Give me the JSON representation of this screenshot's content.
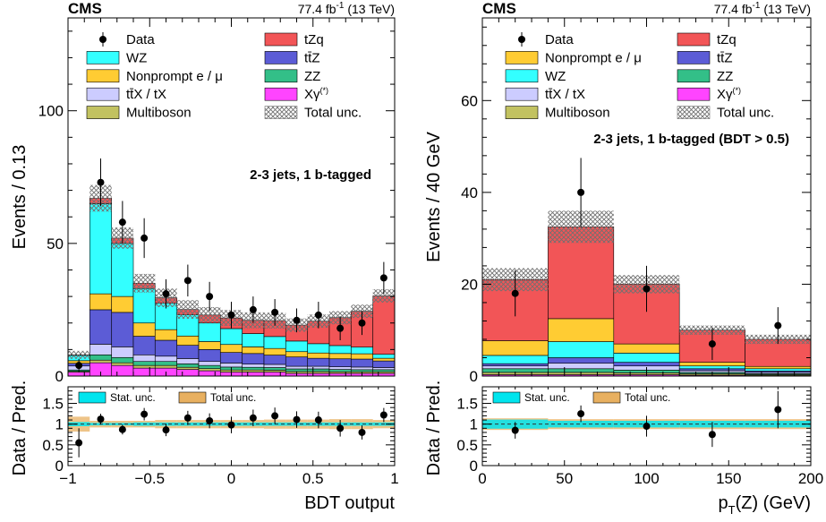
{
  "colors": {
    "tZq": "#f25557",
    "WZ": "#33ffff",
    "Nonprompt": "#ffcc33",
    "ttZ": "#5c5cd6",
    "ttX": "#ccccff",
    "ZZ": "#33bf88",
    "Multiboson": "#c2c260",
    "Xgamma": "#ff44ff",
    "stat": "#00e5ee",
    "total": "#e8b060"
  },
  "chart_data": [
    {
      "type": "bar",
      "stacked": true,
      "header": {
        "experiment": "CMS",
        "lumi": "77.4 fb",
        "lumi_sup": "-1",
        "lumi_energy": " (13 TeV)"
      },
      "region": "2-3 jets, 1 b-tagged",
      "xlabel": "BDT output",
      "ylabel": "Events / 0.13",
      "xlim": [
        -1,
        1
      ],
      "ylim": [
        0,
        135
      ],
      "yticks": [
        0,
        50,
        100
      ],
      "xtick_labels": [
        "−1",
        "−0.5",
        "0",
        "0.5",
        "1"
      ],
      "xtick_values": [
        -1,
        -0.5,
        0,
        0.5,
        1
      ],
      "ytick_labels": [
        "0",
        "50",
        "100"
      ],
      "bin_edges": [
        -1.0,
        -0.867,
        -0.733,
        -0.6,
        -0.467,
        -0.333,
        -0.2,
        -0.067,
        0.067,
        0.2,
        0.333,
        0.467,
        0.6,
        0.733,
        0.867,
        1.0
      ],
      "series": [
        {
          "key": "Xgamma",
          "values": [
            1.5,
            5,
            4,
            3,
            3,
            2.5,
            2,
            1.5,
            1.5,
            1.5,
            1,
            1,
            1,
            1,
            1
          ]
        },
        {
          "key": "Multiboson",
          "values": [
            0.3,
            1,
            1,
            1,
            1,
            0.8,
            0.8,
            0.8,
            0.8,
            0.7,
            0.7,
            0.7,
            0.6,
            0.6,
            0.6
          ]
        },
        {
          "key": "ZZ",
          "values": [
            0.5,
            2,
            2,
            1.5,
            1.5,
            1.3,
            1.2,
            1.1,
            1,
            1,
            1,
            1,
            0.9,
            0.8,
            0.8
          ]
        },
        {
          "key": "ttX",
          "values": [
            1.5,
            4,
            4,
            2.5,
            2,
            2,
            1.5,
            1.5,
            1.2,
            1.2,
            1,
            1,
            1,
            1,
            0.8
          ]
        },
        {
          "key": "ttZ",
          "values": [
            1,
            13,
            13,
            7,
            6,
            5,
            4.5,
            4,
            4,
            3.5,
            3.5,
            3,
            3,
            3,
            2.5
          ]
        },
        {
          "key": "Nonprompt",
          "values": [
            1,
            6,
            6,
            5,
            4,
            3.5,
            3,
            3,
            2.5,
            2.5,
            2,
            2,
            2,
            2,
            1
          ]
        },
        {
          "key": "WZ",
          "values": [
            2,
            34,
            20,
            13,
            10,
            8,
            7,
            6,
            5,
            4.5,
            4,
            3.5,
            3,
            2.5,
            1.5
          ]
        },
        {
          "key": "tZq",
          "values": [
            0.2,
            2,
            2,
            2,
            2,
            2,
            3,
            4,
            5,
            6,
            6,
            8.5,
            10.5,
            13.5,
            22
          ]
        }
      ],
      "total_unc": [
        1.5,
        5,
        4,
        3.5,
        3.5,
        3.5,
        3,
        3,
        3,
        3,
        2.5,
        2.5,
        2.5,
        2.5,
        2.5
      ],
      "data": {
        "values": [
          4,
          73,
          58,
          52,
          31,
          36,
          30,
          23,
          25,
          24,
          21,
          23,
          18,
          20,
          37
        ],
        "err": [
          2.5,
          9,
          8,
          7.5,
          5.5,
          6,
          5.5,
          5,
          5,
          5,
          4.5,
          5,
          4.5,
          4.5,
          6
        ]
      },
      "legend": [
        {
          "key": "Data",
          "label": "Data",
          "style": "marker"
        },
        {
          "key": "tZq",
          "label": "tZq"
        },
        {
          "key": "WZ",
          "label": "WZ"
        },
        {
          "key": "ttZ",
          "label": "tt̄Z"
        },
        {
          "key": "Nonprompt",
          "label": "Nonprompt e / μ"
        },
        {
          "key": "ZZ",
          "label": "ZZ"
        },
        {
          "key": "ttX",
          "label": "tt̄X / tX"
        },
        {
          "key": "Xgamma",
          "label": "Xγ",
          "sup": "(*)"
        },
        {
          "key": "Multiboson",
          "label": "Multiboson"
        },
        {
          "key": "unc",
          "label": "Total unc.",
          "style": "hatch"
        }
      ],
      "ratio": {
        "ylabel": "Data / Pred.",
        "ylim": [
          0,
          1.9
        ],
        "yticks": [
          0,
          0.5,
          1,
          1.5
        ],
        "ytick_labels": [
          "0",
          "0.5",
          "1",
          "1.5"
        ],
        "legend": [
          {
            "key": "stat",
            "label": "Stat. unc."
          },
          {
            "key": "total",
            "label": "Total unc."
          }
        ],
        "values": [
          0.55,
          1.12,
          0.87,
          1.24,
          0.86,
          1.15,
          1.08,
          0.98,
          1.15,
          1.2,
          1.11,
          1.1,
          0.9,
          0.8,
          1.22
        ],
        "err": [
          0.35,
          0.13,
          0.12,
          0.15,
          0.15,
          0.17,
          0.18,
          0.2,
          0.2,
          0.2,
          0.2,
          0.2,
          0.2,
          0.17,
          0.17
        ],
        "stat_unc": [
          0.05,
          0.03,
          0.03,
          0.04,
          0.04,
          0.04,
          0.04,
          0.04,
          0.04,
          0.04,
          0.04,
          0.04,
          0.04,
          0.04,
          0.04
        ],
        "total_unc": [
          0.18,
          0.08,
          0.08,
          0.08,
          0.1,
          0.1,
          0.1,
          0.1,
          0.1,
          0.11,
          0.11,
          0.11,
          0.12,
          0.12,
          0.1
        ]
      }
    },
    {
      "type": "bar",
      "stacked": true,
      "header": {
        "experiment": "CMS",
        "lumi": "77.4 fb",
        "lumi_sup": "-1",
        "lumi_energy": " (13 TeV)"
      },
      "region": "2-3 jets, 1 b-tagged (BDT > 0.5)",
      "xlabel_main": "p",
      "xlabel_sub": "T",
      "xlabel_rest": "(Z) (GeV)",
      "ylabel": "Events / 40 GeV",
      "xlim": [
        0,
        200
      ],
      "ylim": [
        0,
        78
      ],
      "yticks": [
        0,
        20,
        40,
        60
      ],
      "ytick_labels": [
        "0",
        "20",
        "40",
        "60"
      ],
      "xtick_labels": [
        "0",
        "50",
        "100",
        "150",
        "200"
      ],
      "xtick_values": [
        0,
        50,
        100,
        150,
        200
      ],
      "bin_edges": [
        0,
        40,
        80,
        120,
        160,
        200
      ],
      "series": [
        {
          "key": "Xgamma",
          "values": [
            0.3,
            0.3,
            0.3,
            0.2,
            0.1
          ]
        },
        {
          "key": "Multiboson",
          "values": [
            0.5,
            0.5,
            0.4,
            0.3,
            0.2
          ]
        },
        {
          "key": "ZZ",
          "values": [
            0.8,
            0.8,
            0.6,
            0.3,
            0.2
          ]
        },
        {
          "key": "ttX",
          "values": [
            0.6,
            1.2,
            0.9,
            0.4,
            0.3
          ]
        },
        {
          "key": "ttZ",
          "values": [
            0.5,
            1.2,
            0.8,
            0.4,
            0.3
          ]
        },
        {
          "key": "WZ",
          "values": [
            1.8,
            3.5,
            2.0,
            0.6,
            0.5
          ]
        },
        {
          "key": "Nonprompt",
          "values": [
            3.2,
            5,
            2,
            0.8,
            0.5
          ]
        },
        {
          "key": "tZq",
          "values": [
            13.3,
            20,
            13,
            7,
            5.9
          ]
        }
      ],
      "total_unc": [
        2.5,
        3.5,
        2,
        1,
        1
      ],
      "data": {
        "values": [
          18,
          40,
          19,
          7,
          11
        ],
        "err": [
          5,
          7.5,
          5,
          3.5,
          4
        ]
      },
      "legend": [
        {
          "key": "Data",
          "label": "Data",
          "style": "marker"
        },
        {
          "key": "tZq",
          "label": "tZq"
        },
        {
          "key": "Nonprompt",
          "label": "Nonprompt e / μ"
        },
        {
          "key": "ttZ",
          "label": "tt̄Z"
        },
        {
          "key": "WZ",
          "label": "WZ"
        },
        {
          "key": "ZZ",
          "label": "ZZ"
        },
        {
          "key": "ttX",
          "label": "tt̄X / tX"
        },
        {
          "key": "Xgamma",
          "label": "Xγ",
          "sup": "(*)"
        },
        {
          "key": "Multiboson",
          "label": "Multiboson"
        },
        {
          "key": "unc",
          "label": "Total unc.",
          "style": "hatch"
        }
      ],
      "ratio": {
        "ylabel": "Data / Pred.",
        "ylim": [
          0,
          1.9
        ],
        "yticks": [
          0,
          0.5,
          1,
          1.5
        ],
        "ytick_labels": [
          "0",
          "0.5",
          "1",
          "1.5"
        ],
        "legend": [
          {
            "key": "stat",
            "label": "Stat. unc."
          },
          {
            "key": "total",
            "label": "Total unc."
          }
        ],
        "values": [
          0.85,
          1.25,
          0.95,
          0.75,
          1.35
        ],
        "err": [
          0.2,
          0.2,
          0.25,
          0.3,
          0.45
        ],
        "stat_unc": [
          0.11,
          0.08,
          0.08,
          0.08,
          0.08
        ],
        "total_unc": [
          0.14,
          0.12,
          0.12,
          0.12,
          0.12
        ]
      }
    }
  ]
}
